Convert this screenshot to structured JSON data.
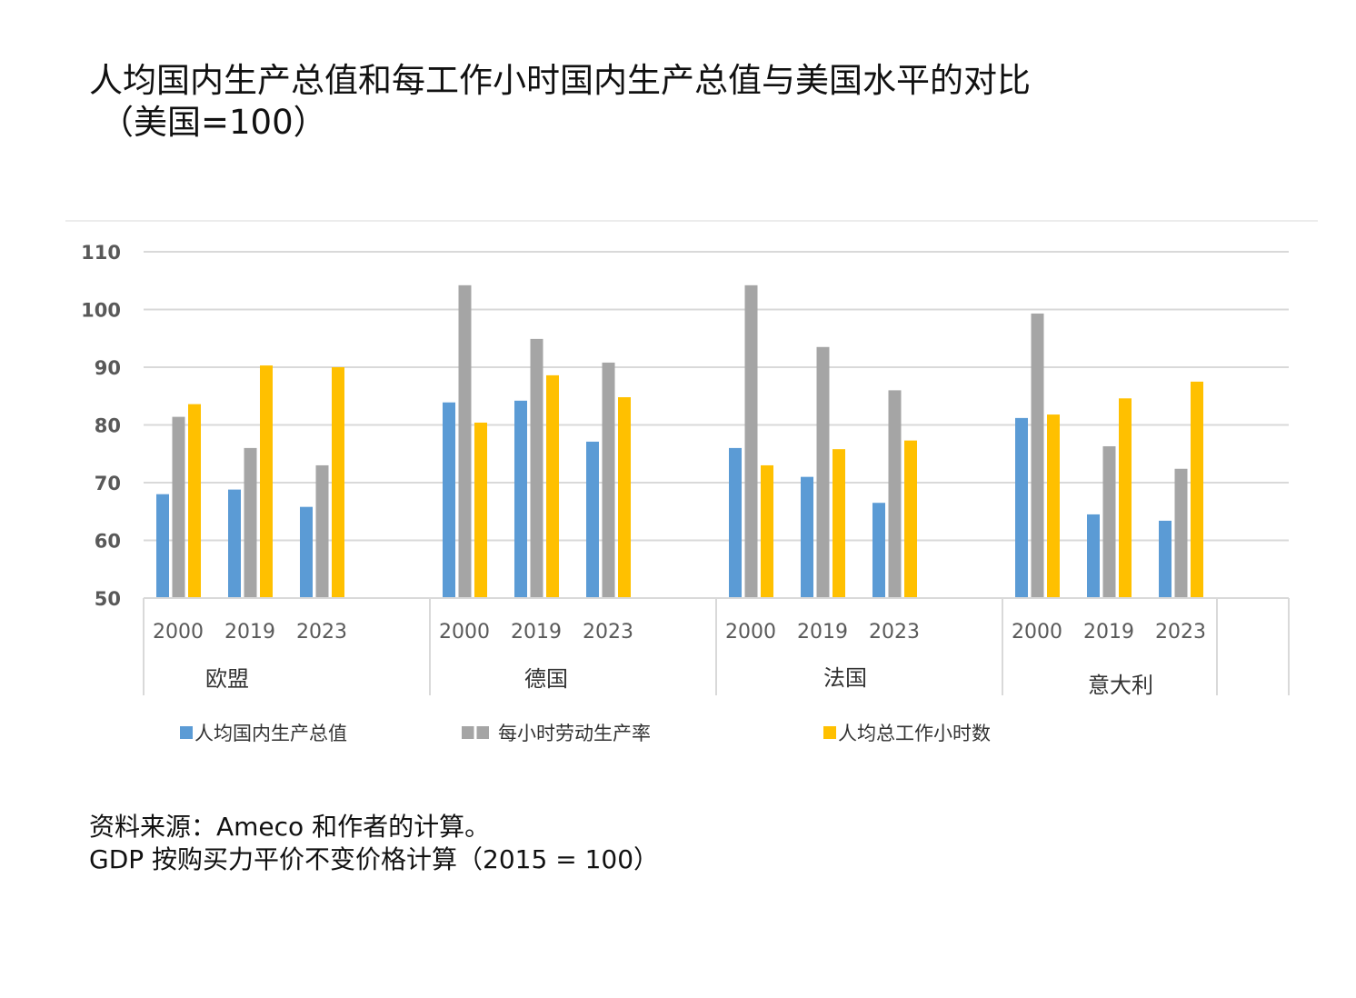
{
  "title": {
    "line1": "人均国内生产总值和每工作小时国内生产总值与美国水平的对比",
    "line2": "（美国=100）"
  },
  "chart_data": {
    "type": "bar",
    "title": "人均国内生产总值和每工作小时国内生产总值与美国水平的对比（美国=100）",
    "xlabel": "",
    "ylabel": "",
    "ylim": [
      50,
      110
    ],
    "yticks": [
      50,
      60,
      70,
      80,
      90,
      100,
      110
    ],
    "grid": true,
    "legend_position": "bottom",
    "groups": [
      "欧盟",
      "德国",
      "法国",
      "意大利"
    ],
    "years": [
      "2000",
      "2019",
      "2023"
    ],
    "categories": [
      "欧盟 2000",
      "欧盟 2019",
      "欧盟 2023",
      "德国 2000",
      "德国 2019",
      "德国 2023",
      "法国 2000",
      "法国 2019",
      "法国 2023",
      "意大利 2000",
      "意大利 2019",
      "意大利 2023"
    ],
    "series": [
      {
        "name": "人均国内生产总值",
        "color": "#5b9bd5",
        "values": [
          68.0,
          68.8,
          65.8,
          83.9,
          84.2,
          77.1,
          76.0,
          71.0,
          66.5,
          81.2,
          64.5,
          63.4
        ]
      },
      {
        "name": "每小时劳动生产率",
        "color": "#a5a5a5",
        "values": [
          81.4,
          76.0,
          73.0,
          104.2,
          94.9,
          90.8,
          104.2,
          93.5,
          86.0,
          99.3,
          76.3,
          72.4
        ]
      },
      {
        "name": "人均总工作小时数",
        "color": "#ffc000",
        "values": [
          83.6,
          90.3,
          90.0,
          80.4,
          88.6,
          84.8,
          73.0,
          75.8,
          77.3,
          81.8,
          84.6,
          87.5
        ]
      }
    ]
  },
  "legend": {
    "items": [
      {
        "label": "人均国内生产总值",
        "color": "#5b9bd5"
      },
      {
        "label": "每小时劳动生产率",
        "color": "#a5a5a5"
      },
      {
        "label": "人均总工作小时数",
        "color": "#ffc000"
      }
    ]
  },
  "source": {
    "line1": "资料来源：Ameco 和作者的计算。",
    "line2": "GDP 按购买力平价不变价格计算（2015 = 100）"
  }
}
